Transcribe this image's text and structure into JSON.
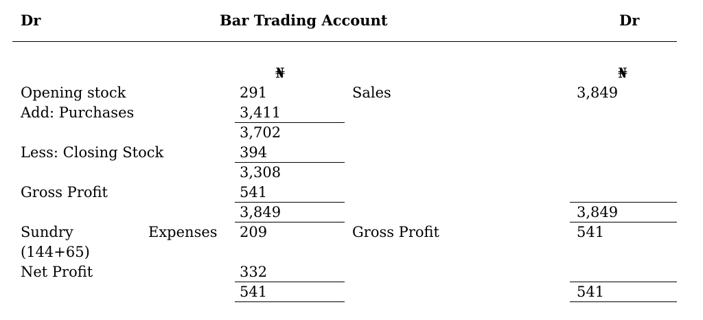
{
  "header": {
    "left": "Dr",
    "title": "Bar Trading Account",
    "right": "Dr"
  },
  "currency_symbol": "₦",
  "rows": {
    "opening_stock": {
      "label": "Opening stock",
      "amount": "291"
    },
    "purchases": {
      "label": "Add: Purchases",
      "amount": "3,411"
    },
    "subtotal_1": {
      "amount": "3,702"
    },
    "closing_stock": {
      "label": "Less: Closing Stock",
      "amount": "394"
    },
    "cost_of_sales": {
      "amount": "3,308"
    },
    "gross_profit": {
      "label": "Gross Profit",
      "amount": "541"
    },
    "total_1": {
      "amount": "3,849"
    },
    "sundry_expenses": {
      "label_part1": "Sundry",
      "label_part2": "Expenses",
      "label_line2": "(144+65)",
      "amount": "209"
    },
    "net_profit": {
      "label": "Net Profit",
      "amount": "332"
    },
    "total_2": {
      "amount": "541"
    }
  },
  "credit": {
    "sales": {
      "label": "Sales",
      "amount": "3,849"
    },
    "total_1": {
      "amount": "3,849"
    },
    "gross_profit": {
      "label": "Gross Profit",
      "amount": "541"
    },
    "total_2": {
      "amount": "541"
    }
  }
}
